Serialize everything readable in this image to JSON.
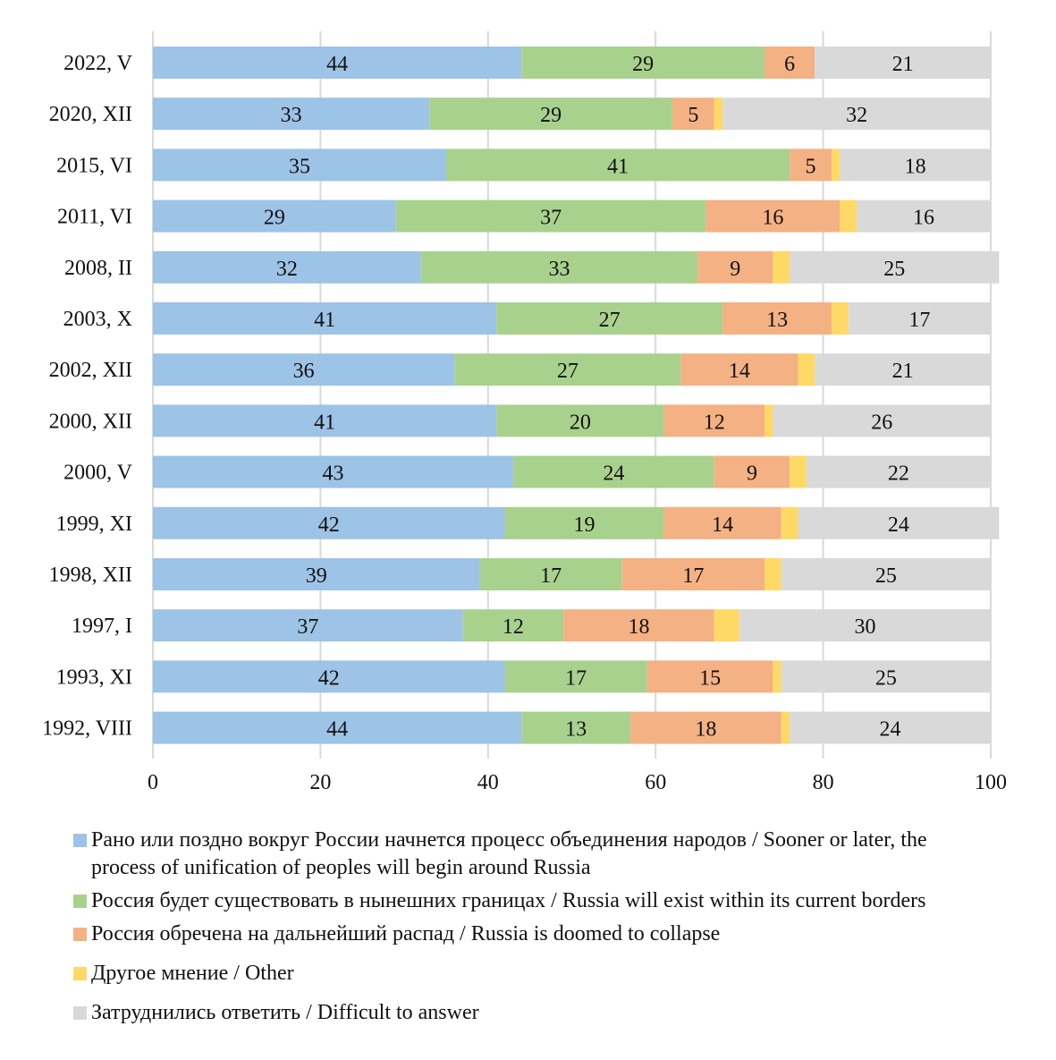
{
  "chart_data": {
    "type": "bar",
    "orientation": "horizontal",
    "stacked": true,
    "title": "",
    "xlabel": "",
    "ylabel": "",
    "xlim": [
      0,
      100
    ],
    "x_ticks": [
      0,
      20,
      40,
      60,
      80,
      100
    ],
    "grid": "vertical",
    "legend_position": "bottom",
    "categories": [
      "2022, V",
      "2020, XII",
      "2015, VI",
      "2011, VI",
      "2008, II",
      "2003, X",
      "2002, XII",
      "2000, XII",
      "2000, V",
      "1999, XI",
      "1998, XII",
      "1997, I",
      "1993, XI",
      "1992, VIII"
    ],
    "series": [
      {
        "name": "Рано или поздно вокруг России начнется процесс объединения народов / Sooner or later, the process of unification of peoples will begin around Russia",
        "color": "#9dc3e6",
        "values": [
          44,
          33,
          35,
          29,
          32,
          41,
          36,
          41,
          43,
          42,
          39,
          37,
          42,
          44
        ],
        "labels_shown": true
      },
      {
        "name": "Россия будет существовать в нынешних границах / Russia will exist within its current borders",
        "color": "#a9d18e",
        "values": [
          29,
          29,
          41,
          37,
          33,
          27,
          27,
          20,
          24,
          19,
          17,
          12,
          17,
          13
        ],
        "labels_shown": true
      },
      {
        "name": "Россия обречена на дальнейший распад / Russia is doomed to collapse",
        "color": "#f4b183",
        "values": [
          6,
          5,
          5,
          16,
          9,
          13,
          14,
          12,
          9,
          14,
          17,
          18,
          15,
          18
        ],
        "labels_shown": true
      },
      {
        "name": "Другое мнение / Other",
        "color": "#ffd966",
        "values": [
          0,
          1,
          1,
          2,
          2,
          2,
          2,
          1,
          2,
          2,
          2,
          3,
          1,
          1
        ],
        "labels_shown": false
      },
      {
        "name": "Затруднились ответить / Difficult to answer",
        "color": "#d9d9d9",
        "values": [
          21,
          32,
          18,
          16,
          25,
          17,
          21,
          26,
          22,
          24,
          25,
          30,
          25,
          24
        ],
        "labels_shown": true
      }
    ]
  },
  "legend": {
    "items": [
      {
        "text": "Рано или поздно вокруг России начнется процесс объединения народов / Sooner or later, the process of unification of peoples will begin around Russia",
        "color": "#9dc3e6"
      },
      {
        "text": "Россия будет существовать в нынешних границах / Russia will exist within its current borders",
        "color": "#a9d18e"
      },
      {
        "text": "Россия обречена на дальнейший распад / Russia is doomed to collapse",
        "color": "#f4b183"
      },
      {
        "text": "Другое мнение / Other",
        "color": "#ffd966"
      },
      {
        "text": "Затруднились ответить / Difficult to answer",
        "color": "#d9d9d9"
      }
    ]
  }
}
